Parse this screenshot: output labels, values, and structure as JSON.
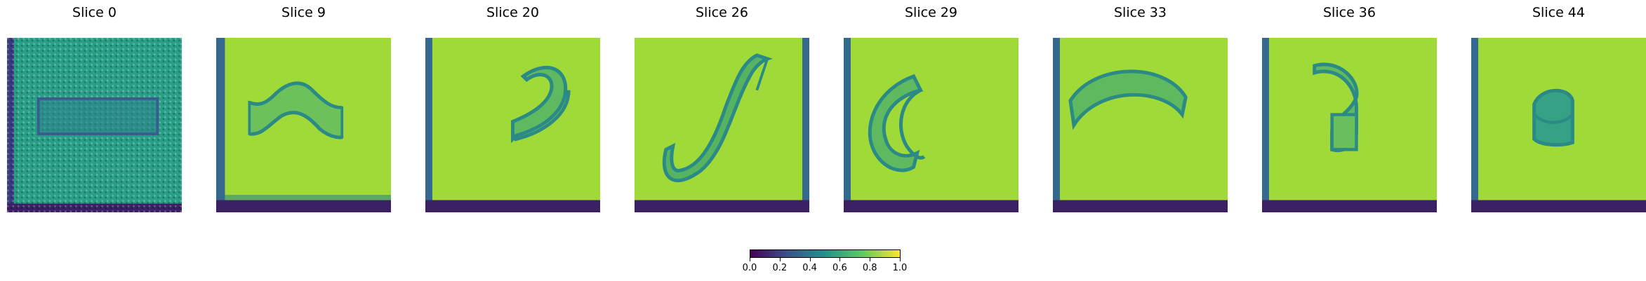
{
  "panels": [
    {
      "title": "Slice 0",
      "shape": "rectangle"
    },
    {
      "title": "Slice 9",
      "shape": "wave"
    },
    {
      "title": "Slice 20",
      "shape": "hook"
    },
    {
      "title": "Slice 26",
      "shape": "s-ribbon"
    },
    {
      "title": "Slice 29",
      "shape": "c-ribbon"
    },
    {
      "title": "Slice 33",
      "shape": "arch"
    },
    {
      "title": "Slice 36",
      "shape": "curl"
    },
    {
      "title": "Slice 44",
      "shape": "small-curl"
    }
  ],
  "colorbar": {
    "colormap": "viridis",
    "range": [
      0.0,
      1.0
    ],
    "ticks": [
      "0.0",
      "0.2",
      "0.4",
      "0.6",
      "0.8",
      "1.0"
    ],
    "colors": [
      "#440154",
      "#3b528b",
      "#21918c",
      "#5ec962",
      "#fde725"
    ]
  },
  "colors": {
    "background_field": "#a0da39",
    "slice0_field": "#2a9f88",
    "frame_dark": "#3c1f63",
    "ribbon": "#2b8a86"
  }
}
